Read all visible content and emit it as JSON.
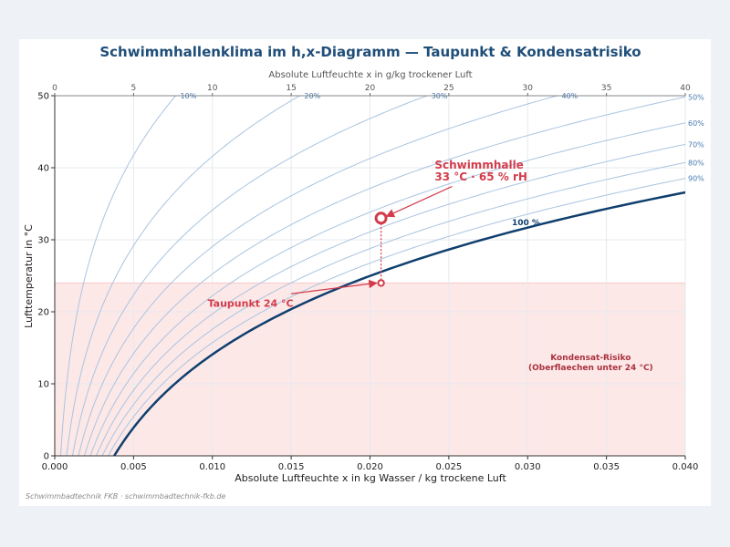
{
  "colors": {
    "saturation": "#0f3f6e",
    "rh_curves": "#a9c4e0",
    "rh_label": "#4a7bb0",
    "annotation": "#d23c4b",
    "zone_fill": "#fde8e8",
    "zone_text": "#a8323e",
    "title": "#1f4e79",
    "grid": "#e6e9ee"
  },
  "chart_data": {
    "type": "line",
    "title": "Schwimmhallenklima im h,x-Diagramm  —  Taupunkt & Kondensatrisiko",
    "xlabel": "Absolute Luftfeuchte  x  in kg Wasser / kg trockene Luft",
    "ylabel": "Lufttemperatur  in °C",
    "xlabel_top": "Absolute Luftfeuchte  x  in g/kg trockener Luft",
    "xlim": [
      0.0,
      0.04
    ],
    "ylim": [
      0,
      50
    ],
    "x_ticks": [
      "0.000",
      "0.005",
      "0.010",
      "0.015",
      "0.020",
      "0.025",
      "0.030",
      "0.035",
      "0.040"
    ],
    "y_ticks": [
      "0",
      "10",
      "20",
      "30",
      "40",
      "50"
    ],
    "x_ticks_top": [
      "0",
      "5",
      "10",
      "15",
      "20",
      "25",
      "30",
      "35",
      "40"
    ],
    "grid": true,
    "pressure_hpa": 1013.25,
    "rh_series": [
      {
        "rh": 10,
        "label": "10%"
      },
      {
        "rh": 20,
        "label": "20%"
      },
      {
        "rh": 30,
        "label": "30%"
      },
      {
        "rh": 40,
        "label": "40%"
      },
      {
        "rh": 50,
        "label": "50%"
      },
      {
        "rh": 60,
        "label": "60%"
      },
      {
        "rh": 70,
        "label": "70%"
      },
      {
        "rh": 80,
        "label": "80%"
      },
      {
        "rh": 90,
        "label": "90%"
      }
    ],
    "saturation": {
      "rh": 100,
      "label": "100 %"
    },
    "points": [
      {
        "name": "hall",
        "x": 0.0207,
        "y": 33,
        "label_line1": "Schwimmhalle",
        "label_line2": "33 °C · 65 % rH"
      },
      {
        "name": "dewpoint",
        "x": 0.0207,
        "y": 24,
        "label": "Taupunkt 24 °C"
      }
    ],
    "risk_zone": {
      "ymin": 0,
      "ymax": 24,
      "label_line1": "Kondensat-Risiko",
      "label_line2": "(Oberflaechen unter 24 °C)"
    }
  },
  "footer": "Schwimmbadtechnik FKB  ·  schwimmbadtechnik-fkb.de"
}
